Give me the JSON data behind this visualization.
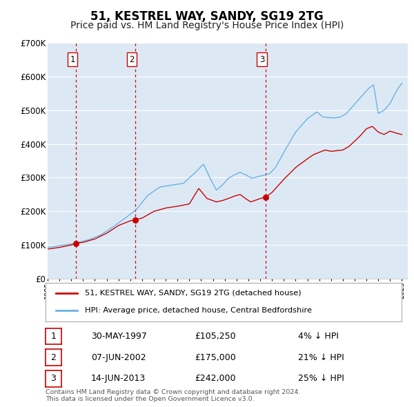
{
  "title": "51, KESTREL WAY, SANDY, SG19 2TG",
  "subtitle": "Price paid vs. HM Land Registry's House Price Index (HPI)",
  "title_fontsize": 12,
  "subtitle_fontsize": 10,
  "background_color": "#ffffff",
  "plot_bg_color": "#dce9f5",
  "grid_color": "#ffffff",
  "ylim": [
    0,
    700000
  ],
  "yticks": [
    0,
    100000,
    200000,
    300000,
    400000,
    500000,
    600000,
    700000
  ],
  "ytick_labels": [
    "£0",
    "£100K",
    "£200K",
    "£300K",
    "£400K",
    "£500K",
    "£600K",
    "£700K"
  ],
  "xlim_start": 1995.0,
  "xlim_end": 2025.5,
  "sale_color": "#cc0000",
  "hpi_color": "#6ab0e0",
  "vline_years": [
    1997.41,
    2002.43,
    2013.45
  ],
  "sale_points": [
    {
      "year": 1997.41,
      "value": 105250
    },
    {
      "year": 2002.43,
      "value": 175000
    },
    {
      "year": 2013.45,
      "value": 242000
    }
  ],
  "box_labels": [
    {
      "year": 1997.41,
      "label": "1"
    },
    {
      "year": 2002.43,
      "label": "2"
    },
    {
      "year": 2013.45,
      "label": "3"
    }
  ],
  "legend_entries": [
    {
      "label": "51, KESTREL WAY, SANDY, SG19 2TG (detached house)",
      "color": "#cc0000"
    },
    {
      "label": "HPI: Average price, detached house, Central Bedfordshire",
      "color": "#6ab0e0"
    }
  ],
  "table_rows": [
    {
      "num": "1",
      "date": "30-MAY-1997",
      "price": "£105,250",
      "pct": "4% ↓ HPI"
    },
    {
      "num": "2",
      "date": "07-JUN-2002",
      "price": "£175,000",
      "pct": "21% ↓ HPI"
    },
    {
      "num": "3",
      "date": "14-JUN-2013",
      "price": "£242,000",
      "pct": "25% ↓ HPI"
    }
  ],
  "footer": "Contains HM Land Registry data © Crown copyright and database right 2024.\nThis data is licensed under the Open Government Licence v3.0."
}
